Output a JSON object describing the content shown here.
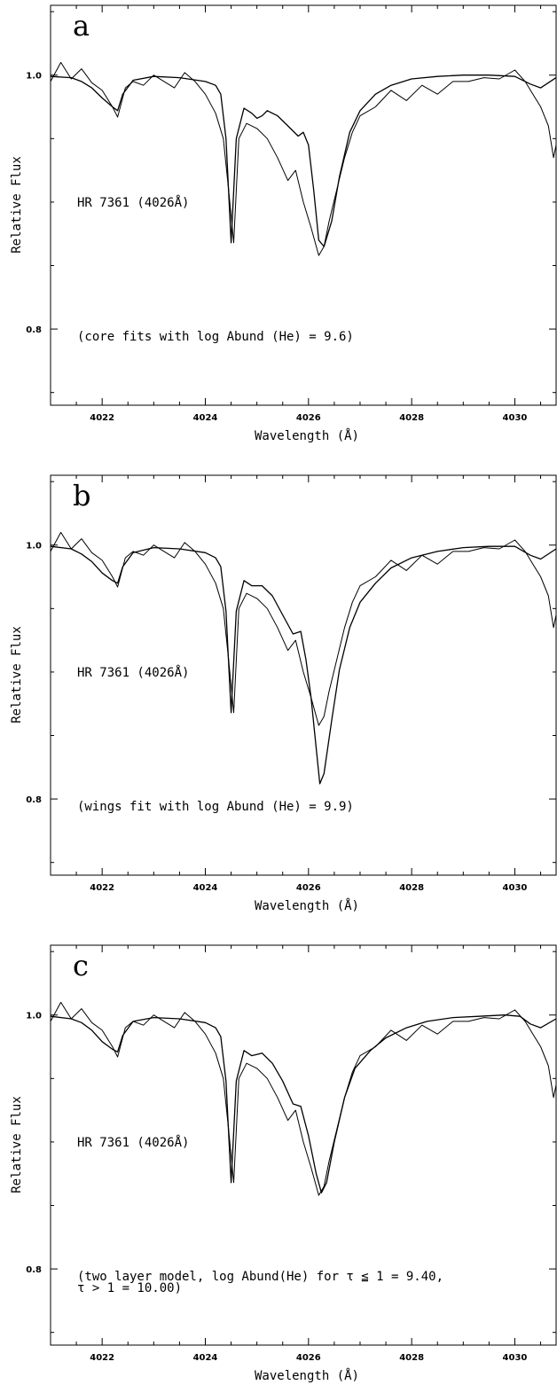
{
  "colors": {
    "background": "#ffffff",
    "ink": "#000000"
  },
  "chart_data": [
    {
      "type": "line",
      "panel_letter": "a",
      "xlabel": "Wavelength (Å)",
      "ylabel": "Relative Flux",
      "xlim": [
        4021,
        4030.8
      ],
      "ylim": [
        0.74,
        1.055
      ],
      "x_ticks": [
        4022,
        4024,
        4026,
        4028,
        4030
      ],
      "y_tick_labels": [
        1.0,
        0.8
      ],
      "grid": false,
      "star_label": "HR 7361 (4026Å)",
      "annotation": [
        "(core fits with log Abund (He) = 9.6)"
      ],
      "series": [
        {
          "role": "observed",
          "x": [
            4021.0,
            4021.2,
            4021.4,
            4021.6,
            4021.8,
            4022.0,
            4022.2,
            4022.3,
            4022.45,
            4022.6,
            4022.8,
            4023.0,
            4023.2,
            4023.4,
            4023.6,
            4023.8,
            4024.0,
            4024.2,
            4024.35,
            4024.45,
            4024.55,
            4024.65,
            4024.8,
            4025.0,
            4025.2,
            4025.4,
            4025.6,
            4025.75,
            4025.9,
            4026.05,
            4026.2,
            4026.3,
            4026.4,
            4026.55,
            4026.7,
            4026.85,
            4027.0,
            4027.3,
            4027.6,
            4027.9,
            4028.2,
            4028.5,
            4028.8,
            4029.1,
            4029.4,
            4029.7,
            4030.0,
            4030.2,
            4030.35,
            4030.5,
            4030.65,
            4030.75,
            4030.8
          ],
          "y": [
            0.995,
            1.01,
            0.997,
            1.005,
            0.994,
            0.988,
            0.975,
            0.967,
            0.99,
            0.995,
            0.992,
            1.0,
            0.995,
            0.99,
            1.002,
            0.995,
            0.985,
            0.97,
            0.95,
            0.91,
            0.868,
            0.95,
            0.962,
            0.958,
            0.95,
            0.935,
            0.917,
            0.925,
            0.9,
            0.88,
            0.858,
            0.865,
            0.885,
            0.91,
            0.935,
            0.955,
            0.968,
            0.975,
            0.988,
            0.98,
            0.992,
            0.985,
            0.995,
            0.995,
            0.998,
            0.997,
            1.004,
            0.995,
            0.985,
            0.975,
            0.96,
            0.935,
            0.945
          ]
        },
        {
          "role": "model",
          "x": [
            4021.0,
            4021.4,
            4021.6,
            4021.8,
            4022.0,
            4022.2,
            4022.3,
            4022.4,
            4022.6,
            4023.0,
            4023.5,
            4024.0,
            4024.2,
            4024.3,
            4024.4,
            4024.5,
            4024.6,
            4024.75,
            4024.9,
            4025.0,
            4025.1,
            4025.2,
            4025.4,
            4025.6,
            4025.8,
            4025.9,
            4026.0,
            4026.1,
            4026.2,
            4026.3,
            4026.45,
            4026.6,
            4026.8,
            4027.0,
            4027.3,
            4027.6,
            4028.0,
            4028.5,
            4029.0,
            4029.5,
            4030.0,
            4030.3,
            4030.5,
            4030.8
          ],
          "y": [
            0.999,
            0.998,
            0.995,
            0.99,
            0.982,
            0.975,
            0.972,
            0.985,
            0.996,
            0.999,
            0.998,
            0.995,
            0.992,
            0.985,
            0.95,
            0.868,
            0.95,
            0.974,
            0.97,
            0.966,
            0.968,
            0.972,
            0.968,
            0.96,
            0.952,
            0.955,
            0.945,
            0.91,
            0.87,
            0.865,
            0.885,
            0.92,
            0.955,
            0.972,
            0.985,
            0.992,
            0.997,
            0.999,
            1.0,
            1.0,
            0.999,
            0.993,
            0.99,
            0.998
          ]
        }
      ]
    },
    {
      "type": "line",
      "panel_letter": "b",
      "xlabel": "Wavelength (Å)",
      "ylabel": "Relative Flux",
      "xlim": [
        4021,
        4030.8
      ],
      "ylim": [
        0.74,
        1.055
      ],
      "x_ticks": [
        4022,
        4024,
        4026,
        4028,
        4030
      ],
      "y_tick_labels": [
        1.0,
        0.8
      ],
      "grid": false,
      "star_label": "HR 7361 (4026Å)",
      "annotation": [
        "(wings fit with log Abund (He) = 9.9)"
      ],
      "series": [
        {
          "role": "observed",
          "x": [
            4021.0,
            4021.2,
            4021.4,
            4021.6,
            4021.8,
            4022.0,
            4022.2,
            4022.3,
            4022.45,
            4022.6,
            4022.8,
            4023.0,
            4023.2,
            4023.4,
            4023.6,
            4023.8,
            4024.0,
            4024.2,
            4024.35,
            4024.45,
            4024.55,
            4024.65,
            4024.8,
            4025.0,
            4025.2,
            4025.4,
            4025.6,
            4025.75,
            4025.9,
            4026.05,
            4026.2,
            4026.3,
            4026.4,
            4026.55,
            4026.7,
            4026.85,
            4027.0,
            4027.3,
            4027.6,
            4027.9,
            4028.2,
            4028.5,
            4028.8,
            4029.1,
            4029.4,
            4029.7,
            4030.0,
            4030.2,
            4030.35,
            4030.5,
            4030.65,
            4030.75,
            4030.8
          ],
          "y": [
            0.995,
            1.01,
            0.997,
            1.005,
            0.994,
            0.988,
            0.975,
            0.967,
            0.99,
            0.995,
            0.992,
            1.0,
            0.995,
            0.99,
            1.002,
            0.995,
            0.985,
            0.97,
            0.95,
            0.91,
            0.868,
            0.95,
            0.962,
            0.958,
            0.95,
            0.935,
            0.917,
            0.925,
            0.9,
            0.88,
            0.858,
            0.865,
            0.885,
            0.91,
            0.935,
            0.955,
            0.968,
            0.975,
            0.988,
            0.98,
            0.992,
            0.985,
            0.995,
            0.995,
            0.998,
            0.997,
            1.004,
            0.995,
            0.985,
            0.975,
            0.96,
            0.935,
            0.945
          ]
        },
        {
          "role": "model",
          "x": [
            4021.0,
            4021.4,
            4021.6,
            4021.8,
            4022.0,
            4022.2,
            4022.3,
            4022.4,
            4022.6,
            4023.0,
            4023.5,
            4024.0,
            4024.2,
            4024.3,
            4024.4,
            4024.5,
            4024.6,
            4024.75,
            4024.9,
            4025.1,
            4025.3,
            4025.5,
            4025.7,
            4025.85,
            4025.95,
            4026.05,
            4026.15,
            4026.22,
            4026.3,
            4026.45,
            4026.6,
            4026.8,
            4027.0,
            4027.3,
            4027.6,
            4028.0,
            4028.5,
            4029.0,
            4029.5,
            4030.0,
            4030.3,
            4030.5,
            4030.8
          ],
          "y": [
            0.999,
            0.997,
            0.993,
            0.987,
            0.978,
            0.972,
            0.97,
            0.983,
            0.994,
            0.998,
            0.997,
            0.994,
            0.99,
            0.983,
            0.948,
            0.868,
            0.948,
            0.972,
            0.968,
            0.968,
            0.96,
            0.945,
            0.93,
            0.932,
            0.91,
            0.88,
            0.84,
            0.812,
            0.82,
            0.862,
            0.902,
            0.935,
            0.955,
            0.97,
            0.982,
            0.99,
            0.995,
            0.998,
            0.999,
            0.999,
            0.992,
            0.989,
            0.997
          ]
        }
      ]
    },
    {
      "type": "line",
      "panel_letter": "c",
      "xlabel": "Wavelength (Å)",
      "ylabel": "Relative Flux",
      "xlim": [
        4021,
        4030.8
      ],
      "ylim": [
        0.74,
        1.055
      ],
      "x_ticks": [
        4022,
        4024,
        4026,
        4028,
        4030
      ],
      "y_tick_labels": [
        1.0,
        0.8
      ],
      "grid": false,
      "star_label": "HR 7361 (4026Å)",
      "annotation": [
        "(two layer model, log Abund(He) for τ ≦ 1 = 9.40,",
        "τ > 1 = 10.00)"
      ],
      "series": [
        {
          "role": "observed",
          "x": [
            4021.0,
            4021.2,
            4021.4,
            4021.6,
            4021.8,
            4022.0,
            4022.2,
            4022.3,
            4022.45,
            4022.6,
            4022.8,
            4023.0,
            4023.2,
            4023.4,
            4023.6,
            4023.8,
            4024.0,
            4024.2,
            4024.35,
            4024.45,
            4024.55,
            4024.65,
            4024.8,
            4025.0,
            4025.2,
            4025.4,
            4025.6,
            4025.75,
            4025.9,
            4026.05,
            4026.2,
            4026.3,
            4026.4,
            4026.55,
            4026.7,
            4026.85,
            4027.0,
            4027.3,
            4027.6,
            4027.9,
            4028.2,
            4028.5,
            4028.8,
            4029.1,
            4029.4,
            4029.7,
            4030.0,
            4030.2,
            4030.35,
            4030.5,
            4030.65,
            4030.75,
            4030.8
          ],
          "y": [
            0.995,
            1.01,
            0.997,
            1.005,
            0.994,
            0.988,
            0.975,
            0.967,
            0.99,
            0.995,
            0.992,
            1.0,
            0.995,
            0.99,
            1.002,
            0.995,
            0.985,
            0.97,
            0.95,
            0.91,
            0.868,
            0.95,
            0.962,
            0.958,
            0.95,
            0.935,
            0.917,
            0.925,
            0.9,
            0.88,
            0.858,
            0.865,
            0.885,
            0.91,
            0.935,
            0.955,
            0.968,
            0.975,
            0.988,
            0.98,
            0.992,
            0.985,
            0.995,
            0.995,
            0.998,
            0.997,
            1.004,
            0.995,
            0.985,
            0.975,
            0.96,
            0.935,
            0.945
          ]
        },
        {
          "role": "model",
          "x": [
            4021.0,
            4021.4,
            4021.6,
            4021.8,
            4022.0,
            4022.2,
            4022.3,
            4022.4,
            4022.6,
            4023.0,
            4023.5,
            4024.0,
            4024.2,
            4024.3,
            4024.4,
            4024.5,
            4024.6,
            4024.75,
            4024.9,
            4025.1,
            4025.3,
            4025.5,
            4025.7,
            4025.85,
            4026.0,
            4026.15,
            4026.25,
            4026.35,
            4026.5,
            4026.7,
            4026.9,
            4027.2,
            4027.5,
            4027.9,
            4028.3,
            4028.8,
            4029.3,
            4029.8,
            4030.1,
            4030.3,
            4030.5,
            4030.8
          ],
          "y": [
            0.999,
            0.997,
            0.994,
            0.988,
            0.979,
            0.973,
            0.971,
            0.984,
            0.995,
            0.998,
            0.997,
            0.994,
            0.99,
            0.983,
            0.948,
            0.868,
            0.948,
            0.972,
            0.968,
            0.97,
            0.962,
            0.948,
            0.93,
            0.928,
            0.905,
            0.875,
            0.86,
            0.868,
            0.9,
            0.935,
            0.958,
            0.972,
            0.982,
            0.99,
            0.995,
            0.998,
            0.999,
            1.0,
            0.999,
            0.993,
            0.99,
            0.997
          ]
        }
      ]
    }
  ]
}
